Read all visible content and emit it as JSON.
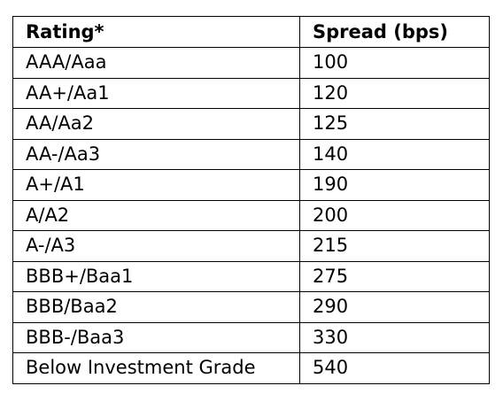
{
  "table": {
    "headers": {
      "rating": "Rating*",
      "spread": "Spread (bps)"
    },
    "rows": [
      {
        "rating": "AAA/Aaa",
        "spread": "100"
      },
      {
        "rating": "AA+/Aa1",
        "spread": "120"
      },
      {
        "rating": "AA/Aa2",
        "spread": "125"
      },
      {
        "rating": "AA-/Aa3",
        "spread": "140"
      },
      {
        "rating": "A+/A1",
        "spread": "190"
      },
      {
        "rating": "A/A2",
        "spread": "200"
      },
      {
        "rating": "A-/A3",
        "spread": "215"
      },
      {
        "rating": "BBB+/Baa1",
        "spread": "275"
      },
      {
        "rating": "BBB/Baa2",
        "spread": "290"
      },
      {
        "rating": "BBB-/Baa3",
        "spread": "330"
      },
      {
        "rating": "Below Investment Grade",
        "spread": "540"
      }
    ]
  }
}
